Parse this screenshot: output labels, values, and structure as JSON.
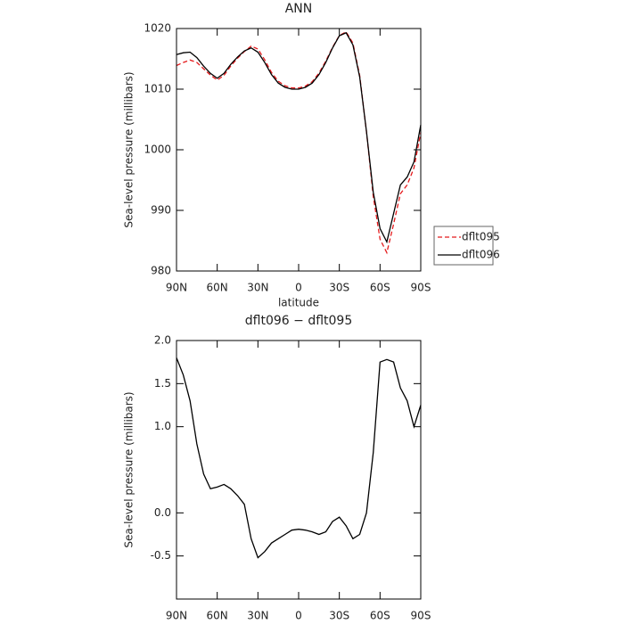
{
  "chart_data": [
    {
      "type": "line",
      "title": "ANN",
      "xlabel": "latitude",
      "ylabel": "Sea-level pressure (millibars)",
      "x": [
        90,
        85,
        80,
        75,
        70,
        65,
        60,
        55,
        50,
        45,
        40,
        35,
        30,
        25,
        20,
        15,
        10,
        5,
        0,
        -5,
        -10,
        -15,
        -20,
        -25,
        -30,
        -35,
        -40,
        -45,
        -50,
        -55,
        -60,
        -65,
        -70,
        -75,
        -80,
        -85,
        -90
      ],
      "xlim": [
        90,
        -90
      ],
      "xticks": [
        {
          "value": 90,
          "label": "90N"
        },
        {
          "value": 60,
          "label": "60N"
        },
        {
          "value": 30,
          "label": "30N"
        },
        0,
        {
          "value": -30,
          "label": "30S"
        },
        {
          "value": -60,
          "label": "60S"
        },
        {
          "value": -90,
          "label": "90S"
        }
      ],
      "ylim": [
        980,
        1020
      ],
      "yticks": [
        980,
        990,
        1000,
        1010,
        1020
      ],
      "legend": "right",
      "series": [
        {
          "name": "dflt095",
          "color": "#e41a1c",
          "linestyle": "dashed",
          "values": [
            1013.9,
            1014.4,
            1014.8,
            1014.4,
            1013.35,
            1012.32,
            1011.5,
            1012.27,
            1013.82,
            1015.1,
            1016.2,
            1017.1,
            1016.62,
            1014.85,
            1012.75,
            1011.3,
            1010.55,
            1010.2,
            1010.19,
            1010.5,
            1011.22,
            1012.65,
            1014.62,
            1016.9,
            1018.85,
            1019.45,
            1017.6,
            1012.25,
            1003.0,
            992.3,
            985.25,
            983.02,
            987.75,
            992.75,
            994.2,
            997.0,
            1002.85
          ]
        },
        {
          "name": "dflt096",
          "color": "#000000",
          "linestyle": "solid",
          "values": [
            1015.7,
            1016.0,
            1016.1,
            1015.2,
            1013.8,
            1012.6,
            1011.8,
            1012.6,
            1014.1,
            1015.3,
            1016.3,
            1016.8,
            1016.1,
            1014.4,
            1012.4,
            1011.0,
            1010.3,
            1010.0,
            1010.0,
            1010.3,
            1011.0,
            1012.4,
            1014.4,
            1016.8,
            1018.8,
            1019.3,
            1017.3,
            1012.0,
            1003.0,
            993.0,
            987.0,
            984.8,
            989.5,
            994.2,
            995.5,
            998.0,
            1004.1
          ]
        }
      ]
    },
    {
      "type": "line",
      "title": "dflt096 − dflt095",
      "xlabel": "latitude",
      "ylabel": "Sea-level pressure (millibars)",
      "x": [
        90,
        85,
        80,
        75,
        70,
        65,
        60,
        55,
        50,
        45,
        40,
        35,
        30,
        25,
        20,
        15,
        10,
        5,
        0,
        -5,
        -10,
        -15,
        -20,
        -25,
        -30,
        -35,
        -40,
        -45,
        -50,
        -55,
        -60,
        -65,
        -70,
        -75,
        -80,
        -85,
        -90
      ],
      "xlim": [
        90,
        -90
      ],
      "xticks": [
        {
          "value": 90,
          "label": "90N"
        },
        {
          "value": 60,
          "label": "60N"
        },
        {
          "value": 30,
          "label": "30N"
        },
        0,
        {
          "value": -30,
          "label": "30S"
        },
        {
          "value": -60,
          "label": "60S"
        },
        {
          "value": -90,
          "label": "90S"
        }
      ],
      "ylim": [
        -1.0,
        2.0
      ],
      "yticks": [
        -0.5,
        {
          "value": 0,
          "label": "0.0"
        },
        {
          "value": 1,
          "label": "1.0"
        },
        1.5,
        {
          "value": 2,
          "label": "2.0"
        }
      ],
      "series": [
        {
          "color": "#000000",
          "linestyle": "solid",
          "values": [
            1.8,
            1.6,
            1.3,
            0.8,
            0.45,
            0.28,
            0.3,
            0.33,
            0.28,
            0.2,
            0.1,
            -0.3,
            -0.52,
            -0.45,
            -0.35,
            -0.3,
            -0.25,
            -0.2,
            -0.19,
            -0.2,
            -0.22,
            -0.25,
            -0.22,
            -0.1,
            -0.05,
            -0.15,
            -0.3,
            -0.25,
            0.0,
            0.7,
            1.75,
            1.78,
            1.75,
            1.45,
            1.3,
            1.0,
            1.25
          ]
        }
      ]
    }
  ]
}
